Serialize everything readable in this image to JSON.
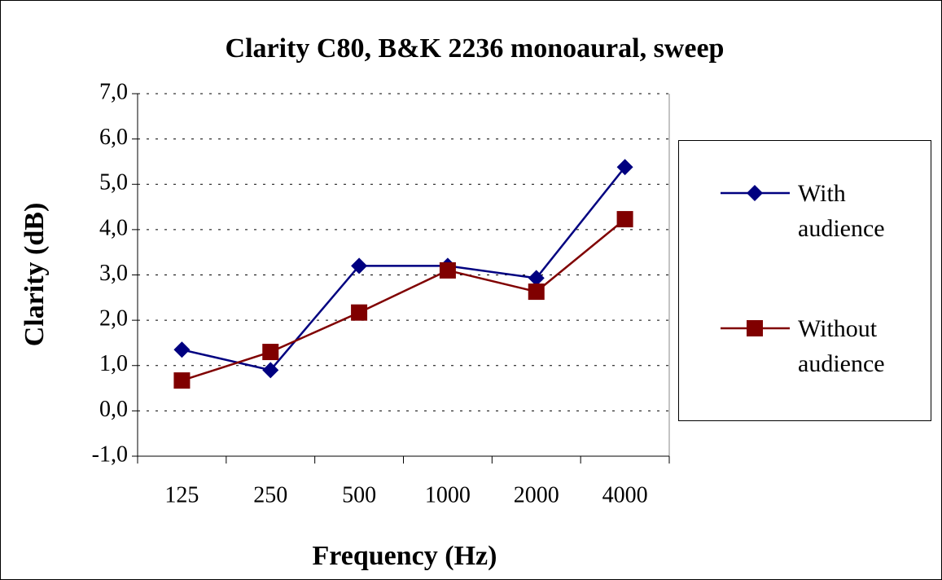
{
  "chart_data": {
    "type": "line",
    "title": "Clarity C80, B&K 2236 monoaural, sweep",
    "xlabel": "Frequency (Hz)",
    "ylabel": "Clarity (dB)",
    "categories": [
      "125",
      "250",
      "500",
      "1000",
      "2000",
      "4000"
    ],
    "series": [
      {
        "name": "With audience",
        "color": "#000080",
        "marker": "diamond",
        "values": [
          1.35,
          0.9,
          3.2,
          3.2,
          2.93,
          5.38
        ]
      },
      {
        "name": "Without audience",
        "color": "#800000",
        "marker": "square",
        "values": [
          0.67,
          1.3,
          2.17,
          3.1,
          2.63,
          4.23
        ]
      }
    ],
    "ylim": [
      -1,
      7
    ],
    "yticks": [
      {
        "value": -1,
        "label": "-1,0"
      },
      {
        "value": 0,
        "label": "0,0"
      },
      {
        "value": 1,
        "label": "1,0"
      },
      {
        "value": 2,
        "label": "2,0"
      },
      {
        "value": 3,
        "label": "3,0"
      },
      {
        "value": 4,
        "label": "4,0"
      },
      {
        "value": 5,
        "label": "5,0"
      },
      {
        "value": 6,
        "label": "6,0"
      },
      {
        "value": 7,
        "label": "7,0"
      }
    ],
    "grid": true,
    "legend": "right"
  }
}
